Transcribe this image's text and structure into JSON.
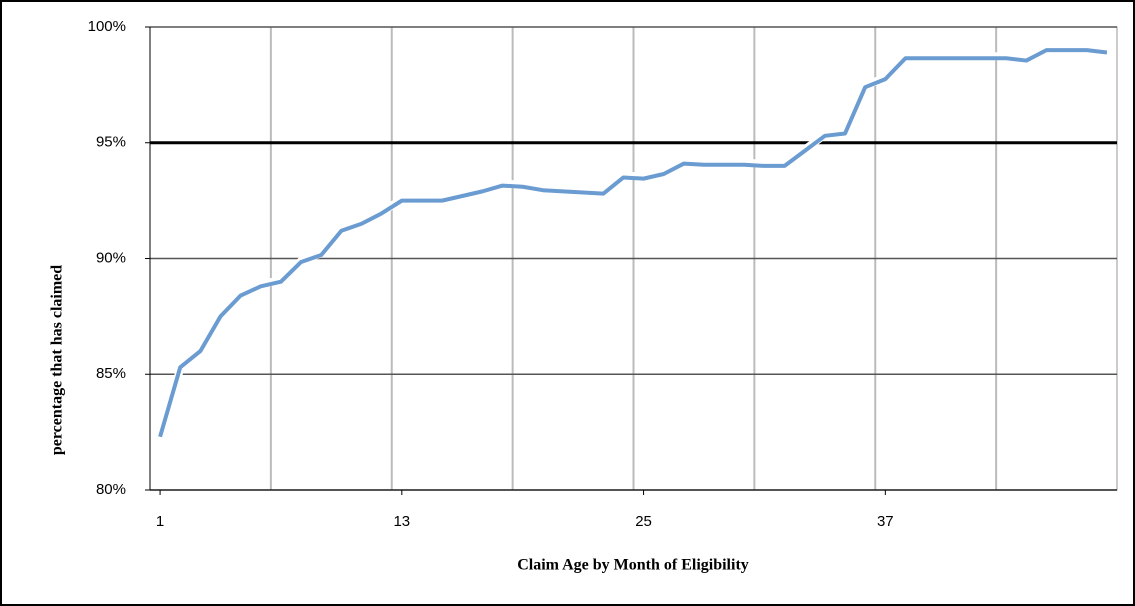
{
  "chart_data": {
    "type": "line",
    "x_label": "Claim Age by Month of Eligibility",
    "y_label": "percentage that has claimed",
    "x": [
      1,
      2,
      3,
      4,
      5,
      6,
      7,
      8,
      9,
      10,
      11,
      12,
      13,
      14,
      15,
      16,
      17,
      18,
      19,
      20,
      21,
      22,
      23,
      24,
      25,
      26,
      27,
      28,
      29,
      30,
      31,
      32,
      33,
      34,
      35,
      36,
      37,
      38,
      39,
      40,
      41,
      42,
      43,
      44,
      45,
      46,
      47,
      48
    ],
    "xlim": [
      0.5,
      48.5
    ],
    "xticks": [
      1,
      13,
      25,
      37
    ],
    "xgrid": [
      6.5,
      12.5,
      18.5,
      24.5,
      30.5,
      36.5,
      42.5
    ],
    "ylim": [
      80,
      100
    ],
    "yticks": [
      {
        "value": 80,
        "label": "80%"
      },
      {
        "value": 85,
        "label": "85%"
      },
      {
        "value": 90,
        "label": "90%"
      },
      {
        "value": 95,
        "label": "95%"
      },
      {
        "value": 100,
        "label": "100%"
      }
    ],
    "reference_line": 95,
    "grid": true,
    "series": [
      {
        "name": "percentage that has claimed",
        "color": "#6a9bd1",
        "values": [
          82.3,
          85.3,
          86.0,
          87.5,
          88.4,
          88.8,
          89.0,
          89.85,
          90.15,
          91.2,
          91.5,
          91.95,
          92.5,
          92.5,
          92.5,
          92.7,
          92.9,
          93.15,
          93.1,
          92.95,
          92.9,
          92.85,
          92.8,
          93.5,
          93.45,
          93.65,
          94.1,
          94.05,
          94.05,
          94.05,
          94.0,
          94.0,
          94.65,
          95.3,
          95.4,
          97.4,
          97.75,
          98.65,
          98.65,
          98.65,
          98.65,
          98.65,
          98.65,
          98.55,
          99.0,
          99.0,
          99.0,
          98.9
        ]
      }
    ]
  }
}
